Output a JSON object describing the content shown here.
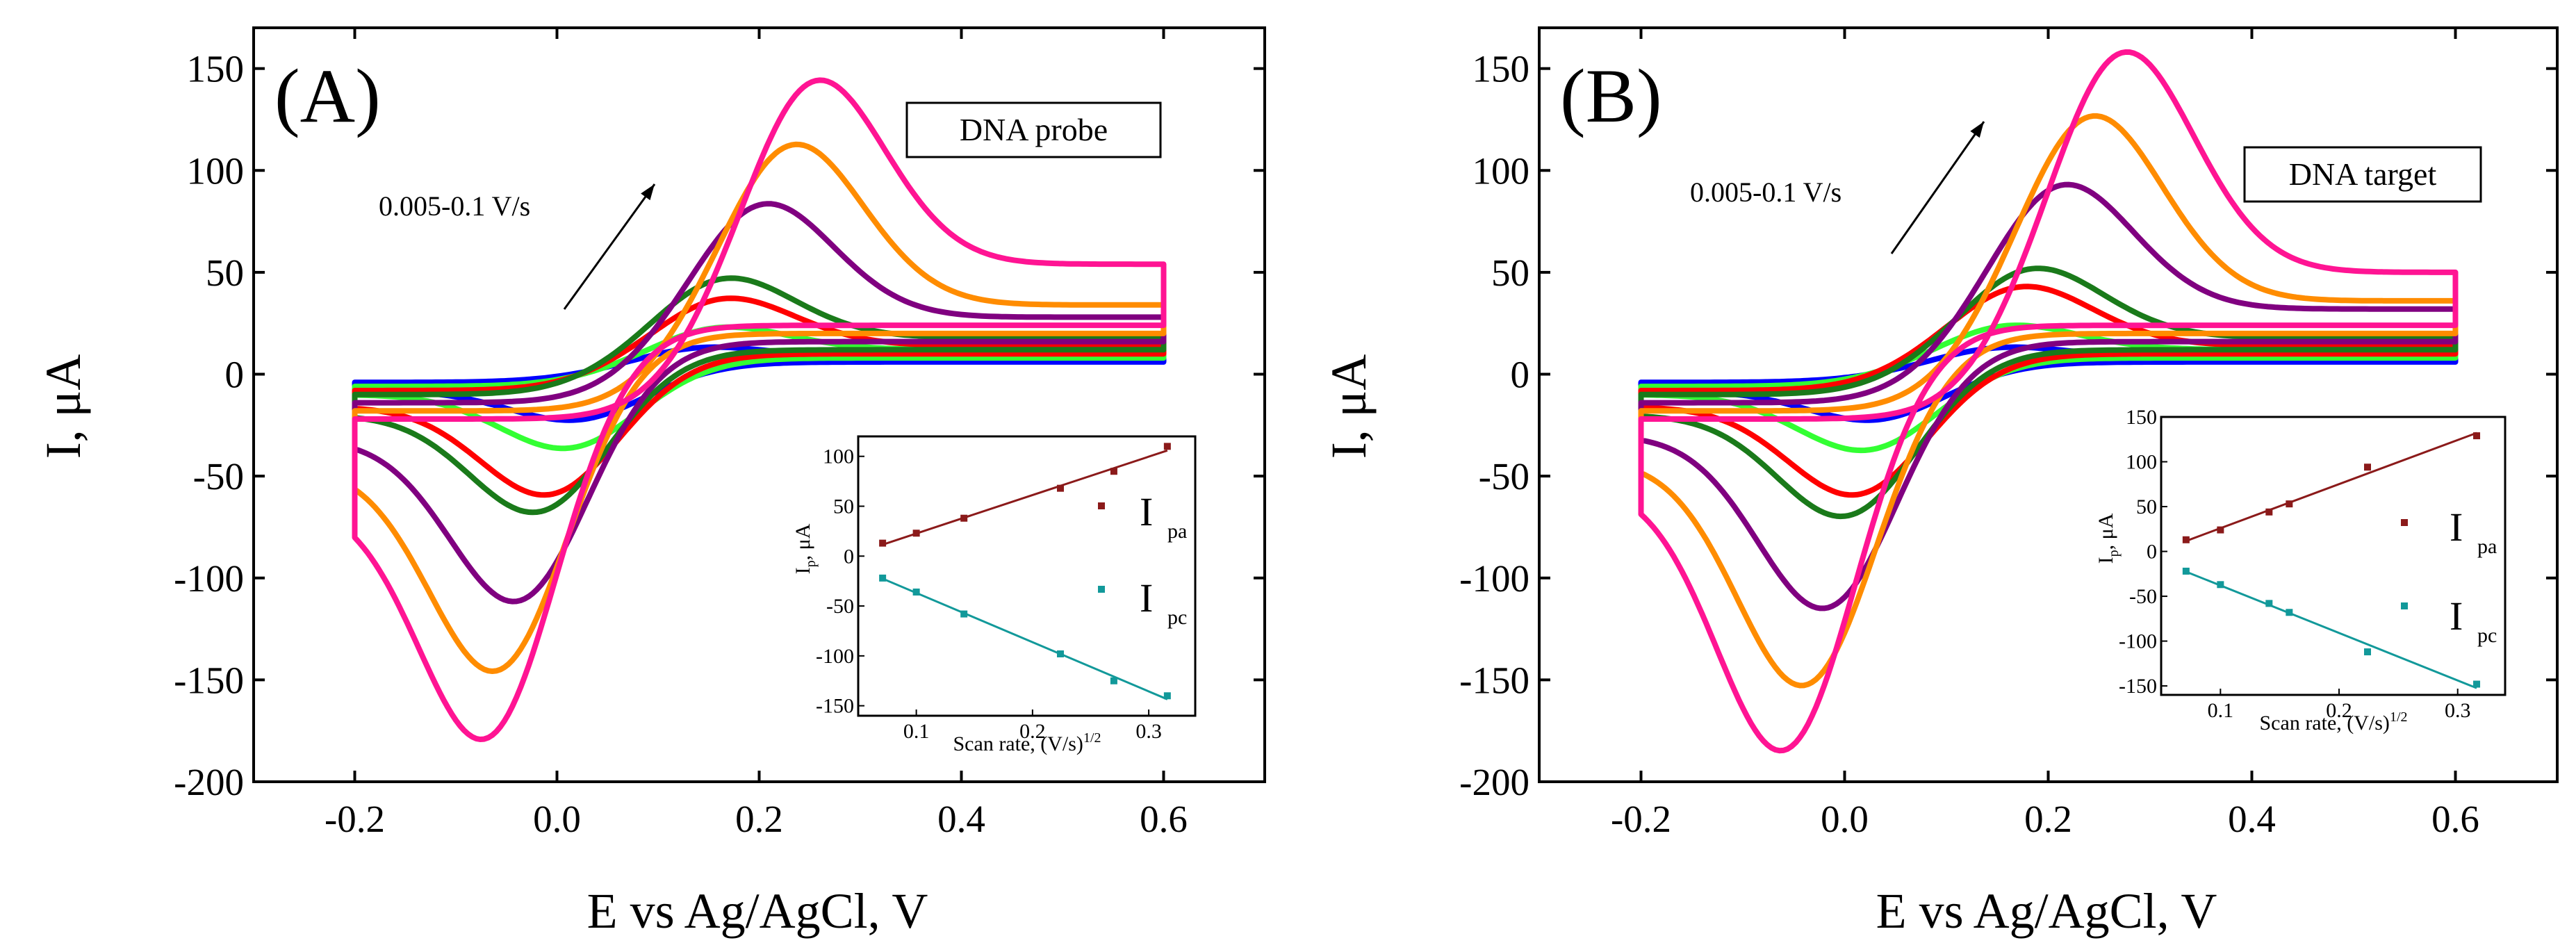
{
  "colors": {
    "axis": "#000000",
    "inset_anodic": "#8B1A1A",
    "inset_cathodic": "#12999A"
  },
  "chart_data": [
    {
      "type": "line",
      "panel_label": "(A)",
      "box_label": "DNA probe",
      "annotation": "0.005-0.1 V/s",
      "xlabel": "E vs Ag/AgCl, V",
      "ylabel": "I, μA",
      "xlim": [
        -0.3,
        0.7
      ],
      "ylim": [
        -200,
        170
      ],
      "xticks": [
        -0.2,
        0.0,
        0.2,
        0.4,
        0.6
      ],
      "xtick_labels": [
        "-0.2",
        "0.0",
        "0.2",
        "0.4",
        "0.6"
      ],
      "yticks": [
        -200,
        -150,
        -100,
        -50,
        0,
        50,
        100,
        150
      ],
      "ytick_labels": [
        "-200",
        "-150",
        "-100",
        "-50",
        "0",
        "50",
        "100",
        "150"
      ],
      "series": [
        {
          "color": "#0000FF",
          "ipa": 13,
          "epa": 0.12,
          "ipc": -22,
          "epc": 0.03,
          "i_start_fwd": -4,
          "i_start_rev": -8,
          "i_end_fwd": 8,
          "i_end_rev": 6
        },
        {
          "color": "#33FF33",
          "ipa": 23,
          "epa": 0.14,
          "ipc": -36,
          "epc": 0.02,
          "i_start_fwd": -6,
          "i_start_rev": -10,
          "i_end_fwd": 12,
          "i_end_rev": 8
        },
        {
          "color": "#FF0000",
          "ipa": 38,
          "epa": 0.15,
          "ipc": -58,
          "epc": 0.0,
          "i_start_fwd": -8,
          "i_start_rev": -16,
          "i_end_fwd": 14,
          "i_end_rev": 10
        },
        {
          "color": "#1A7A1A",
          "ipa": 48,
          "epa": 0.15,
          "ipc": -66,
          "epc": -0.01,
          "i_start_fwd": -10,
          "i_start_rev": -20,
          "i_end_fwd": 18,
          "i_end_rev": 12
        },
        {
          "color": "#800080",
          "ipa": 85,
          "epa": 0.19,
          "ipc": -108,
          "epc": -0.03,
          "i_start_fwd": -14,
          "i_start_rev": -32,
          "i_end_fwd": 28,
          "i_end_rev": 16
        },
        {
          "color": "#FF8C00",
          "ipa": 115,
          "epa": 0.22,
          "ipc": -140,
          "epc": -0.05,
          "i_start_fwd": -18,
          "i_start_rev": -45,
          "i_end_fwd": 34,
          "i_end_rev": 20
        },
        {
          "color": "#FF1493",
          "ipa": 145,
          "epa": 0.24,
          "ipc": -170,
          "epc": -0.06,
          "i_start_fwd": -22,
          "i_start_rev": -62,
          "i_end_fwd": 54,
          "i_end_rev": 24
        }
      ],
      "inset": {
        "type": "scatter",
        "xlabel": "Scan rate, (V/s)",
        "xlabel_sup": "1/2",
        "ylabel": "I",
        "ylabel_sub": "p",
        "ylabel_unit": ", μA",
        "xlim": [
          0.05,
          0.34
        ],
        "ylim": [
          -160,
          120
        ],
        "xticks": [
          0.1,
          0.2,
          0.3
        ],
        "xtick_labels": [
          "0.1",
          "0.2",
          "0.3"
        ],
        "yticks": [
          -150,
          -100,
          -50,
          0,
          50,
          100
        ],
        "ytick_labels": [
          "-150",
          "-100",
          "-50",
          "0",
          "50",
          "100"
        ],
        "series": [
          {
            "name": "I",
            "name_sub": "pa",
            "x": [
              0.071,
              0.1,
              0.141,
              0.224,
              0.27,
              0.316
            ],
            "y": [
              13,
              23,
              38,
              68,
              85,
              110
            ]
          },
          {
            "name": "I",
            "name_sub": "pc",
            "x": [
              0.071,
              0.1,
              0.141,
              0.224,
              0.27,
              0.316
            ],
            "y": [
              -22,
              -36,
              -58,
              -98,
              -125,
              -140
            ]
          }
        ]
      }
    },
    {
      "type": "line",
      "panel_label": "(B)",
      "box_label": "DNA target",
      "annotation": "0.005-0.1 V/s",
      "xlabel": "E vs Ag/AgCl, V",
      "ylabel": "I, μA",
      "xlim": [
        -0.3,
        0.7
      ],
      "ylim": [
        -200,
        170
      ],
      "xticks": [
        -0.2,
        0.0,
        0.2,
        0.4,
        0.6
      ],
      "xtick_labels": [
        "-0.2",
        "0.0",
        "0.2",
        "0.4",
        "0.6"
      ],
      "yticks": [
        -200,
        -150,
        -100,
        -50,
        0,
        50,
        100,
        150
      ],
      "ytick_labels": [
        "-200",
        "-150",
        "-100",
        "-50",
        "0",
        "50",
        "100",
        "150"
      ],
      "series": [
        {
          "color": "#0000FF",
          "ipa": 13,
          "epa": 0.13,
          "ipc": -22,
          "epc": 0.04,
          "i_start_fwd": -4,
          "i_start_rev": -8,
          "i_end_fwd": 8,
          "i_end_rev": 6
        },
        {
          "color": "#33FF33",
          "ipa": 24,
          "epa": 0.14,
          "ipc": -37,
          "epc": 0.03,
          "i_start_fwd": -6,
          "i_start_rev": -10,
          "i_end_fwd": 12,
          "i_end_rev": 8
        },
        {
          "color": "#FF0000",
          "ipa": 44,
          "epa": 0.16,
          "ipc": -58,
          "epc": 0.02,
          "i_start_fwd": -8,
          "i_start_rev": -16,
          "i_end_fwd": 14,
          "i_end_rev": 10
        },
        {
          "color": "#1A7A1A",
          "ipa": 53,
          "epa": 0.17,
          "ipc": -68,
          "epc": 0.01,
          "i_start_fwd": -10,
          "i_start_rev": -20,
          "i_end_fwd": 18,
          "i_end_rev": 12
        },
        {
          "color": "#800080",
          "ipa": 94,
          "epa": 0.2,
          "ipc": -112,
          "epc": -0.01,
          "i_start_fwd": -14,
          "i_start_rev": -30,
          "i_end_fwd": 32,
          "i_end_rev": 16
        },
        {
          "color": "#FF8C00",
          "ipa": 129,
          "epa": 0.23,
          "ipc": -148,
          "epc": -0.03,
          "i_start_fwd": -18,
          "i_start_rev": -42,
          "i_end_fwd": 36,
          "i_end_rev": 20
        },
        {
          "color": "#FF1493",
          "ipa": 160,
          "epa": 0.26,
          "ipc": -178,
          "epc": -0.05,
          "i_start_fwd": -22,
          "i_start_rev": -54,
          "i_end_fwd": 50,
          "i_end_rev": 24
        }
      ],
      "inset": {
        "type": "scatter",
        "xlabel": "Scan rate, (V/s)",
        "xlabel_sup": "1/2",
        "ylabel": "I",
        "ylabel_sub": "p",
        "ylabel_unit": ", μA",
        "xlim": [
          0.05,
          0.34
        ],
        "ylim": [
          -160,
          150
        ],
        "xticks": [
          0.1,
          0.2,
          0.3
        ],
        "xtick_labels": [
          "0.1",
          "0.2",
          "0.3"
        ],
        "yticks": [
          -150,
          -100,
          -50,
          0,
          50,
          100,
          150
        ],
        "ytick_labels": [
          "-150",
          "-100",
          "-50",
          "0",
          "50",
          "100",
          "150"
        ],
        "series": [
          {
            "name": "I",
            "name_sub": "pa",
            "x": [
              0.071,
              0.1,
              0.141,
              0.158,
              0.224,
              0.316
            ],
            "y": [
              13,
              24,
              44,
              53,
              94,
              129
            ]
          },
          {
            "name": "I",
            "name_sub": "pc",
            "x": [
              0.071,
              0.1,
              0.141,
              0.158,
              0.224,
              0.316
            ],
            "y": [
              -22,
              -37,
              -58,
              -68,
              -112,
              -148
            ]
          }
        ]
      }
    }
  ]
}
